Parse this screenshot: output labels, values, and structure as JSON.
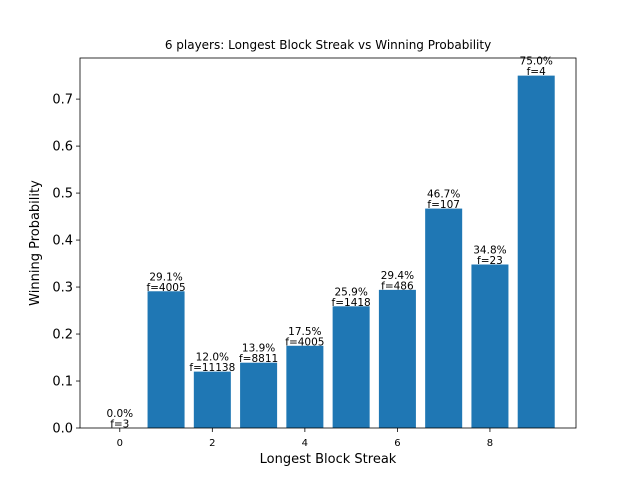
{
  "chart_data": {
    "type": "bar",
    "title": "6 players: Longest Block Streak vs Winning Probability",
    "xlabel": "Longest Block Streak",
    "ylabel": "Winning Probability",
    "x": [
      0,
      1,
      2,
      3,
      4,
      5,
      6,
      7,
      8,
      9
    ],
    "values": [
      0.0,
      0.291,
      0.12,
      0.139,
      0.175,
      0.259,
      0.294,
      0.467,
      0.348,
      0.75
    ],
    "percent_labels": [
      "0.0%",
      "29.1%",
      "12.0%",
      "13.9%",
      "17.5%",
      "25.9%",
      "29.4%",
      "46.7%",
      "34.8%",
      "75.0%"
    ],
    "freq_labels": [
      "f=3",
      "f=4005",
      "f=11138",
      "f=8811",
      "f=4005",
      "f=1418",
      "f=486",
      "f=107",
      "f=23",
      "f=4"
    ],
    "xticks": [
      0,
      2,
      4,
      6,
      8
    ],
    "xtick_labels": [
      "0",
      "2",
      "4",
      "6",
      "8"
    ],
    "yticks": [
      0.0,
      0.1,
      0.2,
      0.3,
      0.4,
      0.5,
      0.6,
      0.7
    ],
    "ytick_labels": [
      "0.0",
      "0.1",
      "0.2",
      "0.3",
      "0.4",
      "0.5",
      "0.6",
      "0.7"
    ],
    "xlim": [
      -0.86,
      9.86
    ],
    "ylim": [
      0,
      0.7875
    ],
    "bar_color": "#1f77b4",
    "grid": false,
    "legend": "none"
  }
}
